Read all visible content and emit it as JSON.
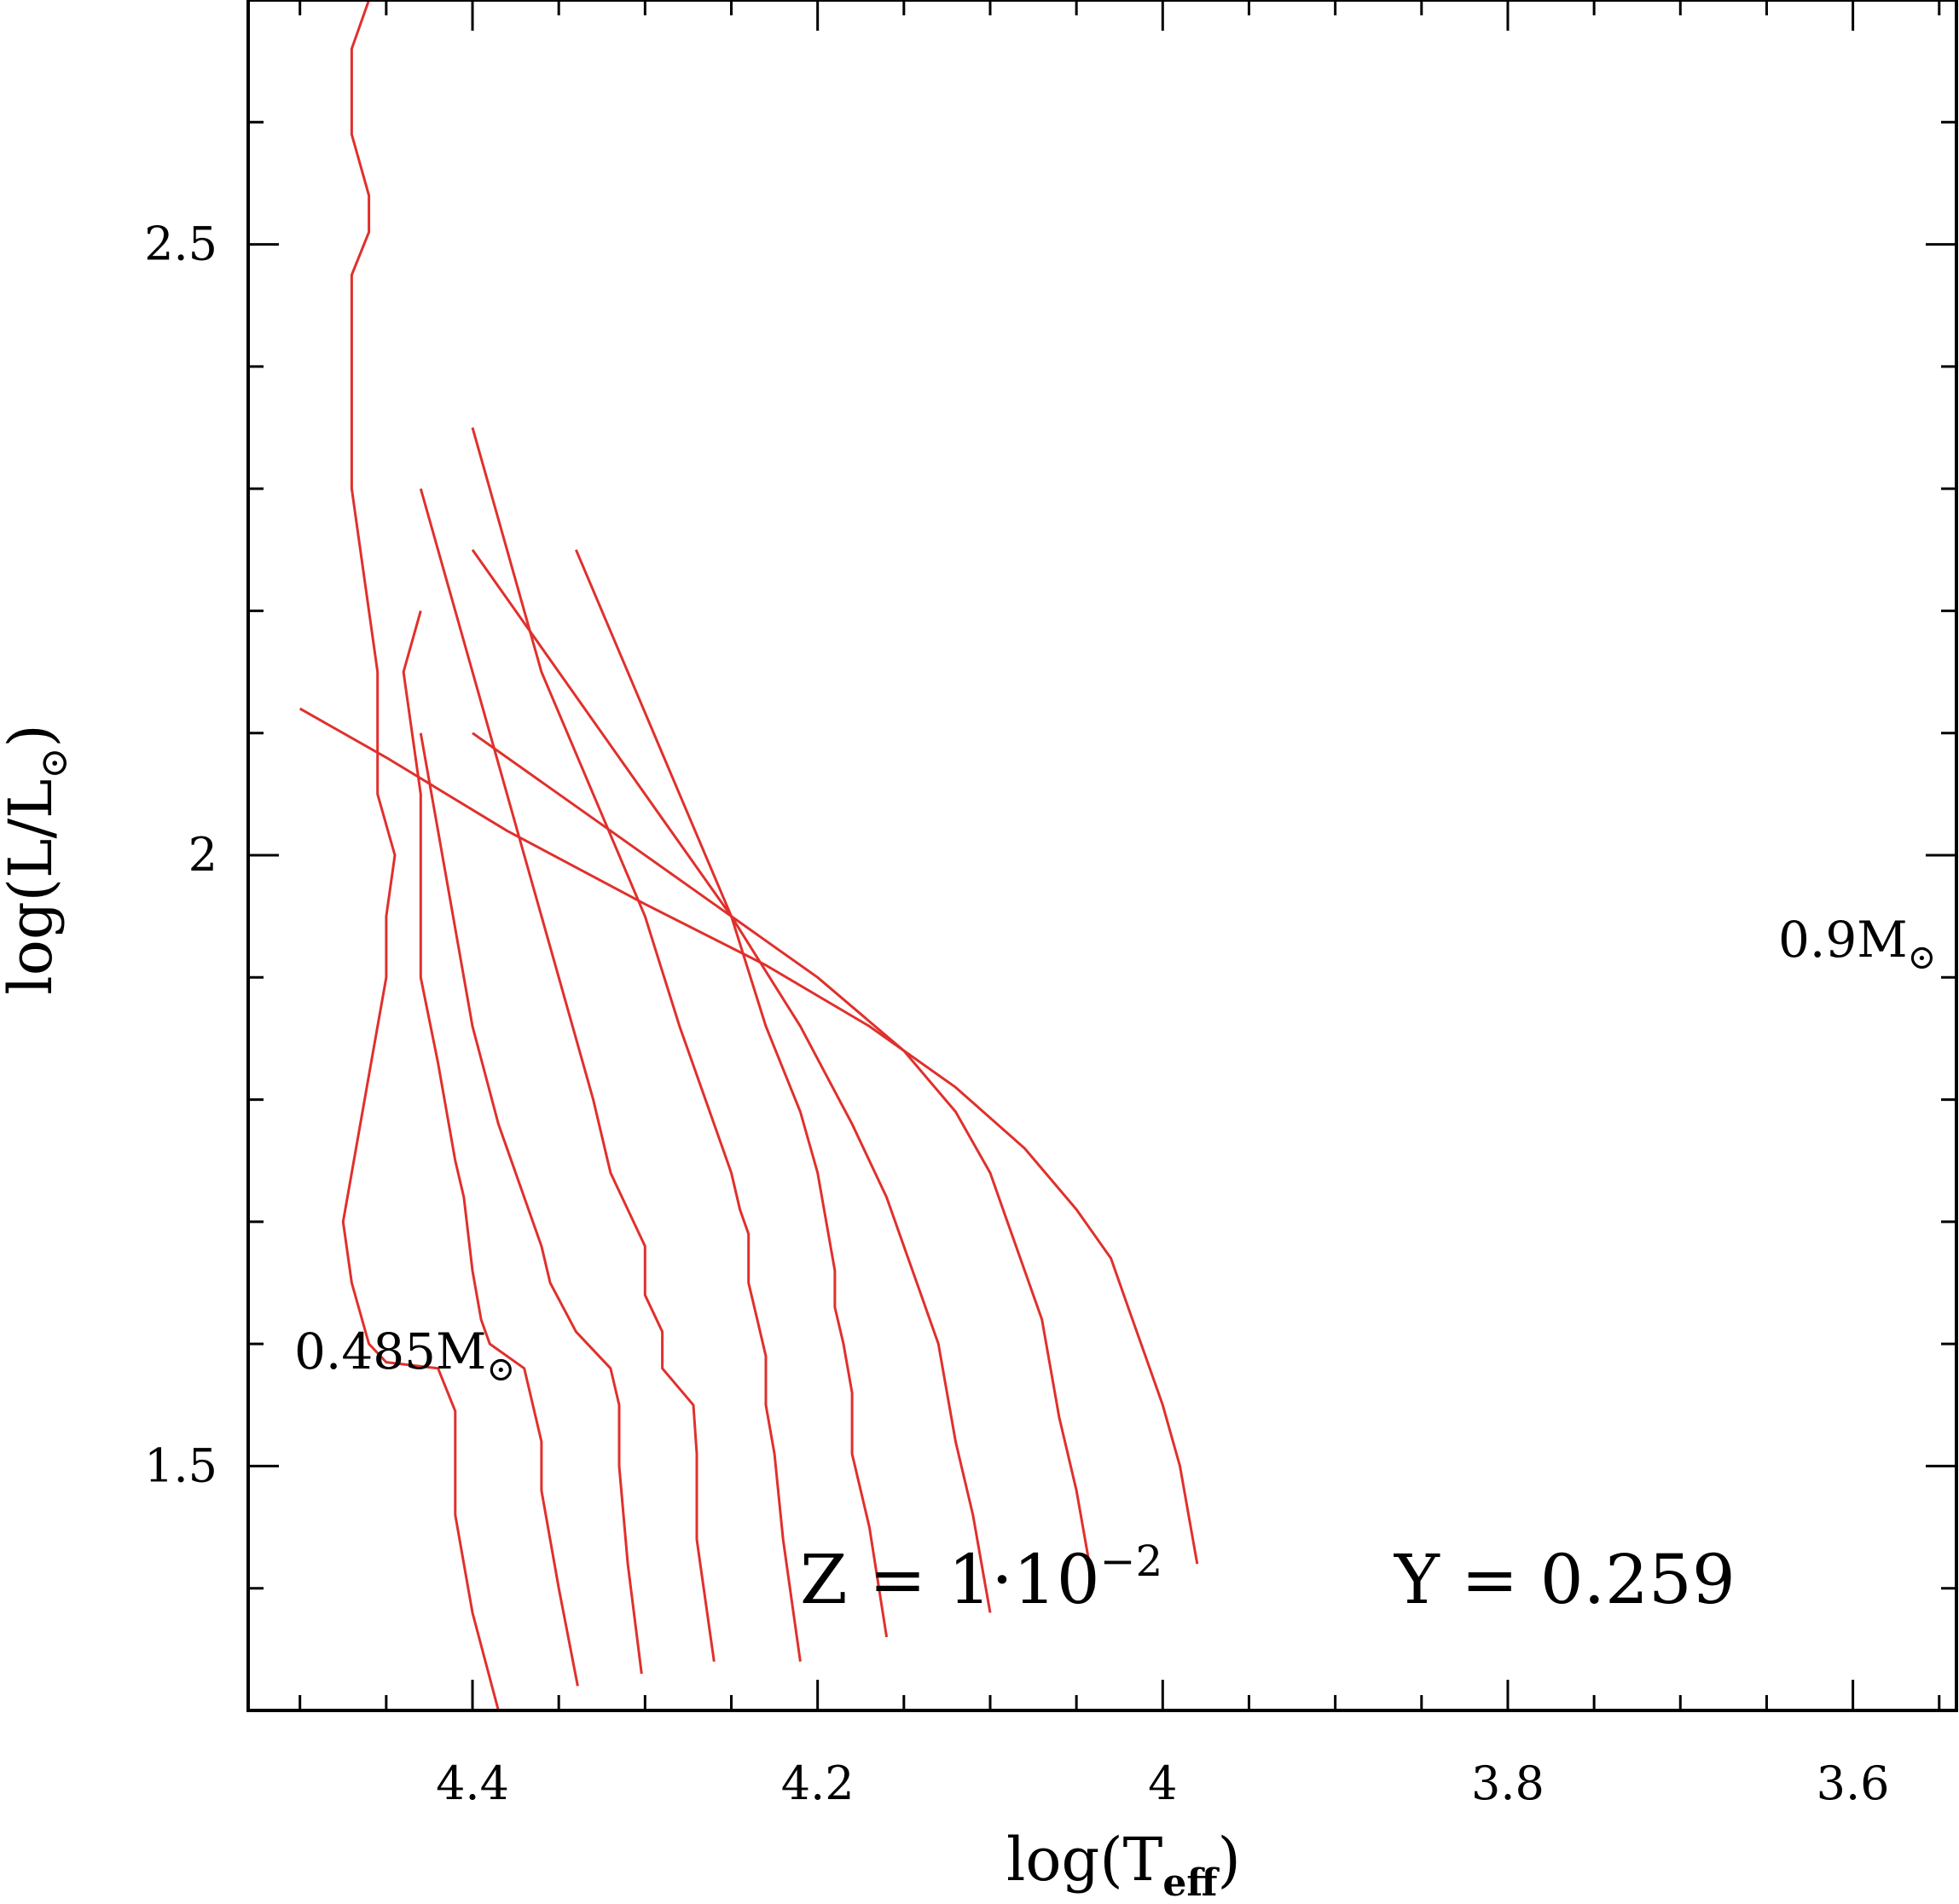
{
  "chart_data": {
    "type": "line",
    "xlabel": {
      "text": "log(T",
      "sub": "eff",
      "close": ")"
    },
    "ylabel": {
      "text": "log(L/L",
      "sub": "⊙",
      "close": ")"
    },
    "xlim": [
      4.53,
      3.54
    ],
    "ylim": [
      1.3,
      2.7
    ],
    "x_reversed": true,
    "x_ticks": [
      {
        "value": 4.4,
        "label": "4.4"
      },
      {
        "value": 4.2,
        "label": "4.2"
      },
      {
        "value": 4.0,
        "label": "4"
      },
      {
        "value": 3.8,
        "label": "3.8"
      },
      {
        "value": 3.6,
        "label": "3.6"
      }
    ],
    "y_ticks": [
      {
        "value": 1.5,
        "label": "1.5"
      },
      {
        "value": 2.0,
        "label": "2"
      },
      {
        "value": 2.5,
        "label": "2.5"
      }
    ],
    "annotations": {
      "composition_z": "Z  =  1·10",
      "composition_z_exp": "−2",
      "composition_y": "Y  =  0.259",
      "low_mass_value": "0.485M",
      "low_mass_sym": "⊙",
      "high_mass_value": "0.9M",
      "high_mass_sym": "⊙"
    },
    "colors": {
      "tracks": "#e0302c",
      "zahb": "#2e46a0",
      "zahb_end": "#3cb040",
      "frame": "#000000"
    },
    "series": [
      {
        "role": "track",
        "x": [
          4.385,
          4.4,
          4.41,
          4.41,
          4.41,
          4.42,
          4.45,
          4.46,
          4.47,
          4.475,
          4.46,
          4.45,
          4.45,
          4.445,
          4.455,
          4.455,
          4.47,
          4.47,
          4.47,
          4.47,
          4.46,
          4.46,
          4.47,
          4.47,
          4.47,
          4.46,
          4.48
        ],
        "y": [
          1.3,
          1.38,
          1.46,
          1.52,
          1.545,
          1.58,
          1.585,
          1.6,
          1.65,
          1.7,
          1.82,
          1.9,
          1.95,
          2.0,
          2.05,
          2.15,
          2.3,
          2.38,
          2.42,
          2.475,
          2.51,
          2.54,
          2.59,
          2.62,
          2.66,
          2.7,
          2.72
        ]
      },
      {
        "role": "track",
        "x": [
          4.339,
          4.35,
          4.36,
          4.36,
          4.365,
          4.37,
          4.39,
          4.395,
          4.4,
          4.405,
          4.41,
          4.42,
          4.43,
          4.43,
          4.43,
          4.43,
          4.44,
          4.43
        ],
        "y": [
          1.32,
          1.4,
          1.48,
          1.52,
          1.55,
          1.58,
          1.6,
          1.62,
          1.66,
          1.72,
          1.75,
          1.83,
          1.9,
          1.96,
          2.0,
          2.05,
          2.15,
          2.2
        ]
      },
      {
        "role": "track",
        "x": [
          4.302,
          4.31,
          4.315,
          4.315,
          4.32,
          4.34,
          4.355,
          4.36,
          4.37,
          4.385,
          4.4,
          4.41,
          4.42,
          4.43
        ],
        "y": [
          1.33,
          1.42,
          1.5,
          1.55,
          1.58,
          1.61,
          1.65,
          1.68,
          1.72,
          1.78,
          1.86,
          1.94,
          2.02,
          2.1
        ]
      },
      {
        "role": "track",
        "x": [
          4.26,
          4.27,
          4.27,
          4.272,
          4.29,
          4.29,
          4.3,
          4.3,
          4.31,
          4.32,
          4.33,
          4.35,
          4.37,
          4.39,
          4.41,
          4.43
        ],
        "y": [
          1.34,
          1.44,
          1.51,
          1.55,
          1.58,
          1.61,
          1.64,
          1.68,
          1.71,
          1.74,
          1.8,
          1.9,
          2.0,
          2.1,
          2.2,
          2.3
        ]
      },
      {
        "role": "track",
        "x": [
          4.21,
          4.22,
          4.225,
          4.23,
          4.23,
          4.235,
          4.24,
          4.24,
          4.245,
          4.25,
          4.26,
          4.28,
          4.3,
          4.33,
          4.36,
          4.38,
          4.4
        ],
        "y": [
          1.34,
          1.44,
          1.51,
          1.55,
          1.59,
          1.62,
          1.65,
          1.69,
          1.71,
          1.74,
          1.78,
          1.86,
          1.95,
          2.05,
          2.15,
          2.25,
          2.35
        ]
      },
      {
        "role": "track",
        "x": [
          4.16,
          4.17,
          4.18,
          4.18,
          4.185,
          4.19,
          4.19,
          4.195,
          4.2,
          4.21,
          4.23,
          4.25,
          4.28,
          4.31,
          4.34
        ],
        "y": [
          1.36,
          1.45,
          1.51,
          1.56,
          1.6,
          1.63,
          1.66,
          1.7,
          1.74,
          1.79,
          1.86,
          1.95,
          2.05,
          2.15,
          2.25
        ]
      },
      {
        "role": "track",
        "x": [
          4.1,
          4.11,
          4.12,
          4.125,
          4.13,
          4.14,
          4.15,
          4.16,
          4.18,
          4.21,
          4.25,
          4.3,
          4.35,
          4.4
        ],
        "y": [
          1.38,
          1.46,
          1.52,
          1.56,
          1.6,
          1.64,
          1.68,
          1.72,
          1.78,
          1.86,
          1.95,
          2.05,
          2.15,
          2.25
        ]
      },
      {
        "role": "track",
        "x": [
          4.04,
          4.05,
          4.06,
          4.065,
          4.07,
          4.08,
          4.09,
          4.1,
          4.12,
          4.15,
          4.2,
          4.26,
          4.32,
          4.4
        ],
        "y": [
          1.4,
          1.48,
          1.54,
          1.58,
          1.62,
          1.66,
          1.7,
          1.74,
          1.79,
          1.84,
          1.9,
          1.96,
          2.02,
          2.1
        ]
      },
      {
        "role": "track",
        "x": [
          3.98,
          3.99,
          4.0,
          4.01,
          4.02,
          4.03,
          4.05,
          4.08,
          4.12,
          4.17,
          4.23,
          4.3,
          4.38,
          4.45,
          4.5
        ],
        "y": [
          1.42,
          1.5,
          1.55,
          1.59,
          1.63,
          1.67,
          1.71,
          1.76,
          1.81,
          1.86,
          1.91,
          1.96,
          2.02,
          2.08,
          2.12
        ]
      }
    ]
  }
}
